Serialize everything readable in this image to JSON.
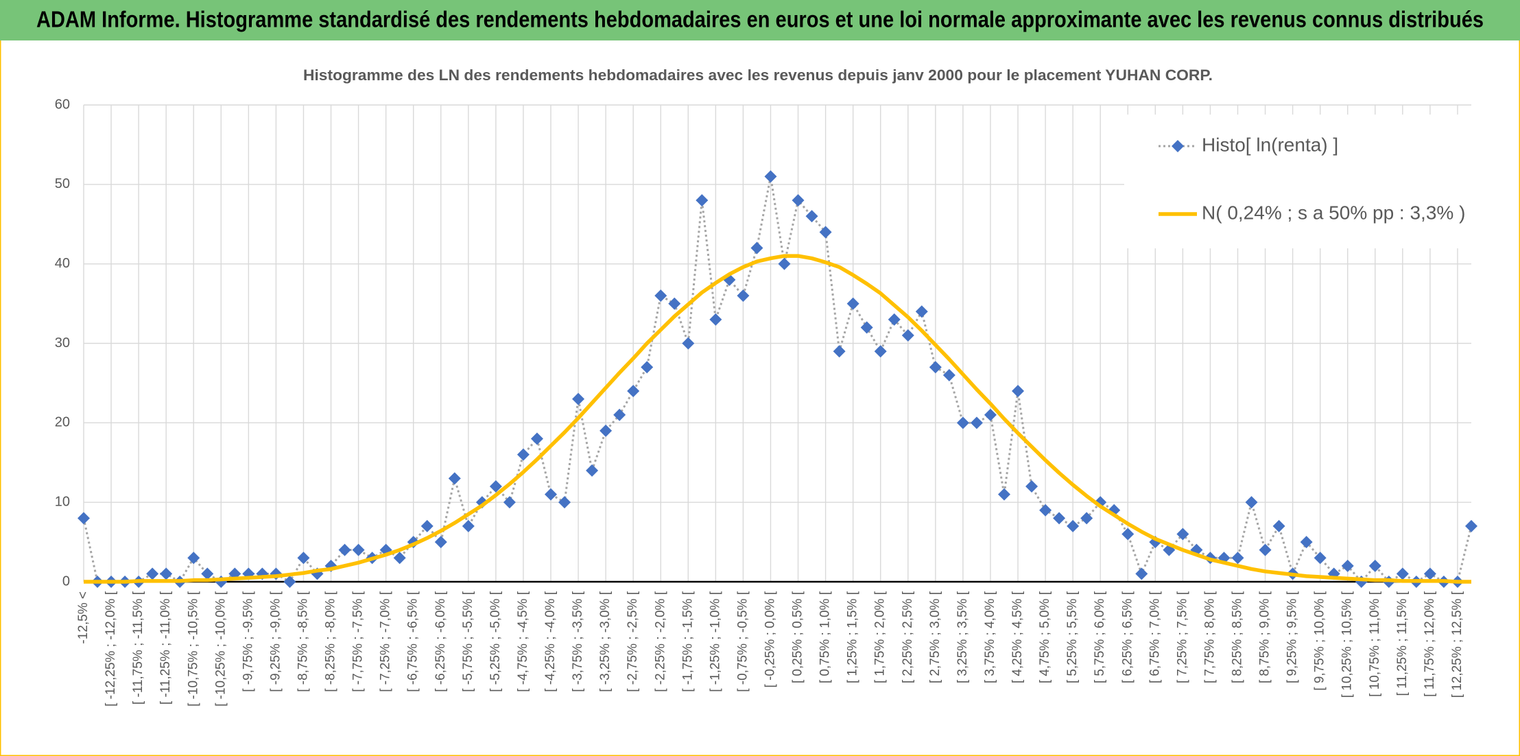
{
  "header": {
    "title": "ADAM Informe. Histogramme standardisé des rendements hebdomadaires en euros et une loi normale approximante avec les revenus connus distribués"
  },
  "chart_data": {
    "type": "line",
    "title": "Histogramme des LN des rendements hebdomadaires avec les revenus depuis janv 2000 pour le placement YUHAN CORP.",
    "categories": [
      "-12,5% <",
      null,
      "[ -12,25% ; -12,0% [",
      null,
      "[ -11,75% ; -11,5% [",
      null,
      "[ -11,25% ; -11,0% [",
      null,
      "[ -10,75% ; -10,5% [",
      null,
      "[ -10,25% ; -10,0% [",
      null,
      "[ -9,75% ; -9,5% [",
      null,
      "[ -9,25% ; -9,0% [",
      null,
      "[ -8,75% ; -8,5% [",
      null,
      "[ -8,25% ; -8,0% [",
      null,
      "[ -7,75% ; -7,5% [",
      null,
      "[ -7,25% ; -7,0% [",
      null,
      "[ -6,75% ; -6,5% [",
      null,
      "[ -6,25% ; -6,0% [",
      null,
      "[ -5,75% ; -5,5% [",
      null,
      "[ -5,25% ; -5,0% [",
      null,
      "[ -4,75% ; -4,5% [",
      null,
      "[ -4,25% ; -4,0% [",
      null,
      "[ -3,75% ; -3,5% [",
      null,
      "[ -3,25% ; -3,0% [",
      null,
      "[ -2,75% ; -2,5% [",
      null,
      "[ -2,25% ; -2,0% [",
      null,
      "[ -1,75% ; -1,5% [",
      null,
      "[ -1,25% ; -1,0% [",
      null,
      "[ -0,75% ; -0,5% [",
      null,
      "[ -0,25% ; 0,0% [",
      null,
      "[ 0,25% ; 0,5% [",
      null,
      "[ 0,75% ; 1,0% [",
      null,
      "[ 1,25% ; 1,5% [",
      null,
      "[ 1,75% ; 2,0% [",
      null,
      "[ 2,25% ; 2,5% [",
      null,
      "[ 2,75% ; 3,0% [",
      null,
      "[ 3,25% ; 3,5% [",
      null,
      "[ 3,75% ; 4,0% [",
      null,
      "[ 4,25% ; 4,5% [",
      null,
      "[ 4,75% ; 5,0% [",
      null,
      "[ 5,25% ; 5,5% [",
      null,
      "[ 5,75% ; 6,0% [",
      null,
      "[ 6,25% ; 6,5% [",
      null,
      "[ 6,75% ; 7,0% [",
      null,
      "[ 7,25% ; 7,5% [",
      null,
      "[ 7,75% ; 8,0% [",
      null,
      "[ 8,25% ; 8,5% [",
      null,
      "[ 8,75% ; 9,0% [",
      null,
      "[ 9,25% ; 9,5% [",
      null,
      "[ 9,75% ; 10,0% [",
      null,
      "[ 10,25% ; 10,5% [",
      null,
      "[ 10,75% ; 11,0% [",
      null,
      "[ 11,25% ; 11,5% [",
      null,
      "[ 11,75% ; 12,0% [",
      null,
      "[ 12,25% ; 12,5% [",
      null
    ],
    "series": [
      {
        "name": "Histo[ ln(renta) ]",
        "color": "#4472c4",
        "line_color": "#a5a5a5",
        "marker": "diamond",
        "line_style": "dotted",
        "values": [
          8,
          0,
          0,
          0,
          0,
          1,
          1,
          0,
          3,
          1,
          0,
          1,
          1,
          1,
          1,
          0,
          3,
          1,
          2,
          4,
          4,
          3,
          4,
          3,
          5,
          7,
          5,
          13,
          7,
          10,
          12,
          10,
          16,
          18,
          11,
          10,
          23,
          14,
          19,
          21,
          24,
          27,
          36,
          35,
          30,
          48,
          33,
          38,
          36,
          42,
          51,
          40,
          48,
          46,
          44,
          29,
          35,
          32,
          29,
          33,
          31,
          34,
          27,
          26,
          20,
          20,
          21,
          11,
          24,
          12,
          9,
          8,
          7,
          8,
          10,
          9,
          6,
          1,
          5,
          4,
          6,
          4,
          3,
          3,
          3,
          10,
          4,
          7,
          1,
          5,
          3,
          1,
          2,
          0,
          2,
          0,
          1,
          0,
          1,
          0,
          0,
          7
        ]
      },
      {
        "name": "N( 0,24% ; s a 50% pp : 3,3% )",
        "color": "#ffc000",
        "line_style": "solid",
        "values": [
          0.0,
          0.0,
          0.0,
          0.0,
          0.1,
          0.1,
          0.1,
          0.1,
          0.2,
          0.2,
          0.3,
          0.4,
          0.5,
          0.6,
          0.7,
          0.9,
          1.1,
          1.4,
          1.6,
          2.0,
          2.4,
          2.9,
          3.4,
          4.0,
          4.7,
          5.5,
          6.4,
          7.4,
          8.5,
          9.6,
          10.9,
          12.3,
          13.8,
          15.4,
          17.1,
          18.8,
          20.6,
          22.5,
          24.4,
          26.3,
          28.1,
          30.0,
          31.7,
          33.4,
          34.9,
          36.4,
          37.6,
          38.7,
          39.6,
          40.3,
          40.7,
          41.0,
          41.0,
          40.7,
          40.2,
          39.6,
          38.6,
          37.5,
          36.3,
          34.8,
          33.3,
          31.6,
          29.8,
          28.0,
          26.1,
          24.2,
          22.4,
          20.5,
          18.7,
          17.0,
          15.3,
          13.7,
          12.2,
          10.8,
          9.5,
          8.4,
          7.3,
          6.3,
          5.4,
          4.7,
          4.0,
          3.4,
          2.8,
          2.4,
          2.0,
          1.6,
          1.3,
          1.1,
          0.9,
          0.7,
          0.6,
          0.5,
          0.4,
          0.3,
          0.2,
          0.2,
          0.1,
          0.1,
          0.1,
          0.1,
          0.0,
          0.0
        ]
      }
    ],
    "ylim": [
      0,
      60
    ],
    "yticks": [
      0,
      10,
      20,
      30,
      40,
      50,
      60
    ],
    "grid": true,
    "legend": "top-right"
  }
}
